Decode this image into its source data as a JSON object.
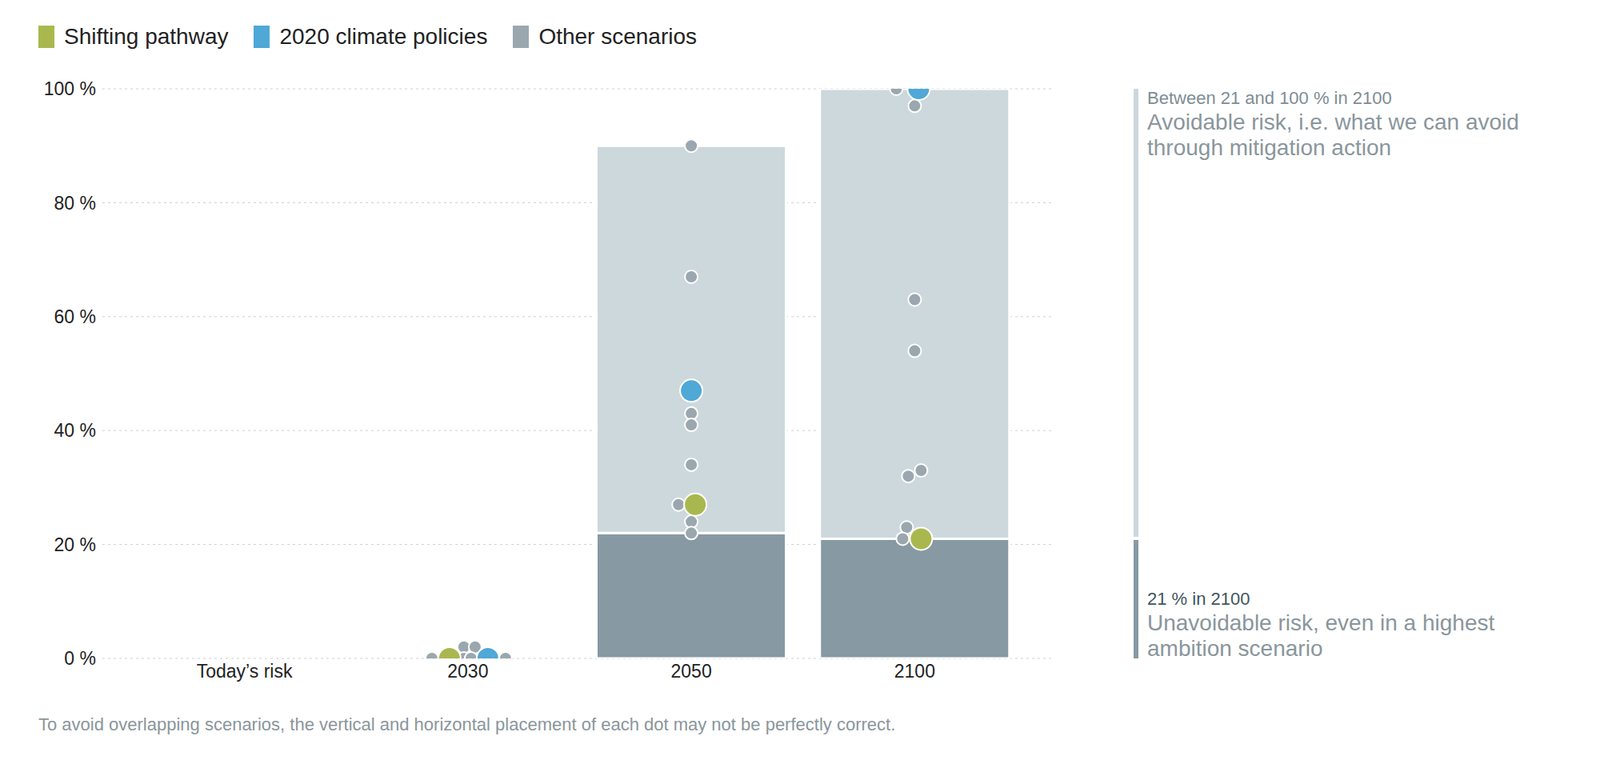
{
  "chart_data": {
    "type": "bar",
    "stacked": true,
    "grid": true,
    "legend": "top left",
    "categories": [
      "Today’s risk",
      "2030",
      "2050",
      "2100"
    ],
    "ylim": [
      0,
      100
    ],
    "yticks": [
      {
        "value": 0,
        "label": "0 %"
      },
      {
        "value": 20,
        "label": "20 %"
      },
      {
        "value": 40,
        "label": "40 %"
      },
      {
        "value": 60,
        "label": "60 %"
      },
      {
        "value": 80,
        "label": "80 %"
      },
      {
        "value": 100,
        "label": "100 %"
      }
    ],
    "series": [
      {
        "name": "Unavoidable risk, even in a highest ambition scenario",
        "caption": "21 % in 2100",
        "type": "bar",
        "color": "#8799a3",
        "values": [
          null,
          null,
          22,
          21
        ]
      },
      {
        "name": "Avoidable risk, i.e. what we can avoid through mitigation action",
        "caption": "Between 21 and 100 % in 2100",
        "type": "bar",
        "color": "#cdd8dc",
        "values": [
          null,
          null,
          68,
          79
        ]
      },
      {
        "name": "Other scenarios",
        "type": "scatter",
        "color": "#9ba7ae",
        "values": [
          [],
          [
            0,
            2,
            2,
            0,
            0,
            0
          ],
          [
            90,
            67,
            43,
            41,
            34,
            27,
            24,
            22
          ],
          [
            100,
            97,
            63,
            54,
            33,
            32,
            23,
            21
          ]
        ]
      },
      {
        "name": "2020 climate policies",
        "type": "scatter",
        "color": "#4fa8d6",
        "values": [
          null,
          0,
          47,
          100
        ]
      },
      {
        "name": "Shifting pathway",
        "type": "scatter",
        "color": "#a9b84e",
        "values": [
          null,
          0,
          27,
          21
        ]
      }
    ],
    "footnote": "To avoid overlapping scenarios, the vertical and horizontal placement of each dot may not be perfectly correct."
  }
}
